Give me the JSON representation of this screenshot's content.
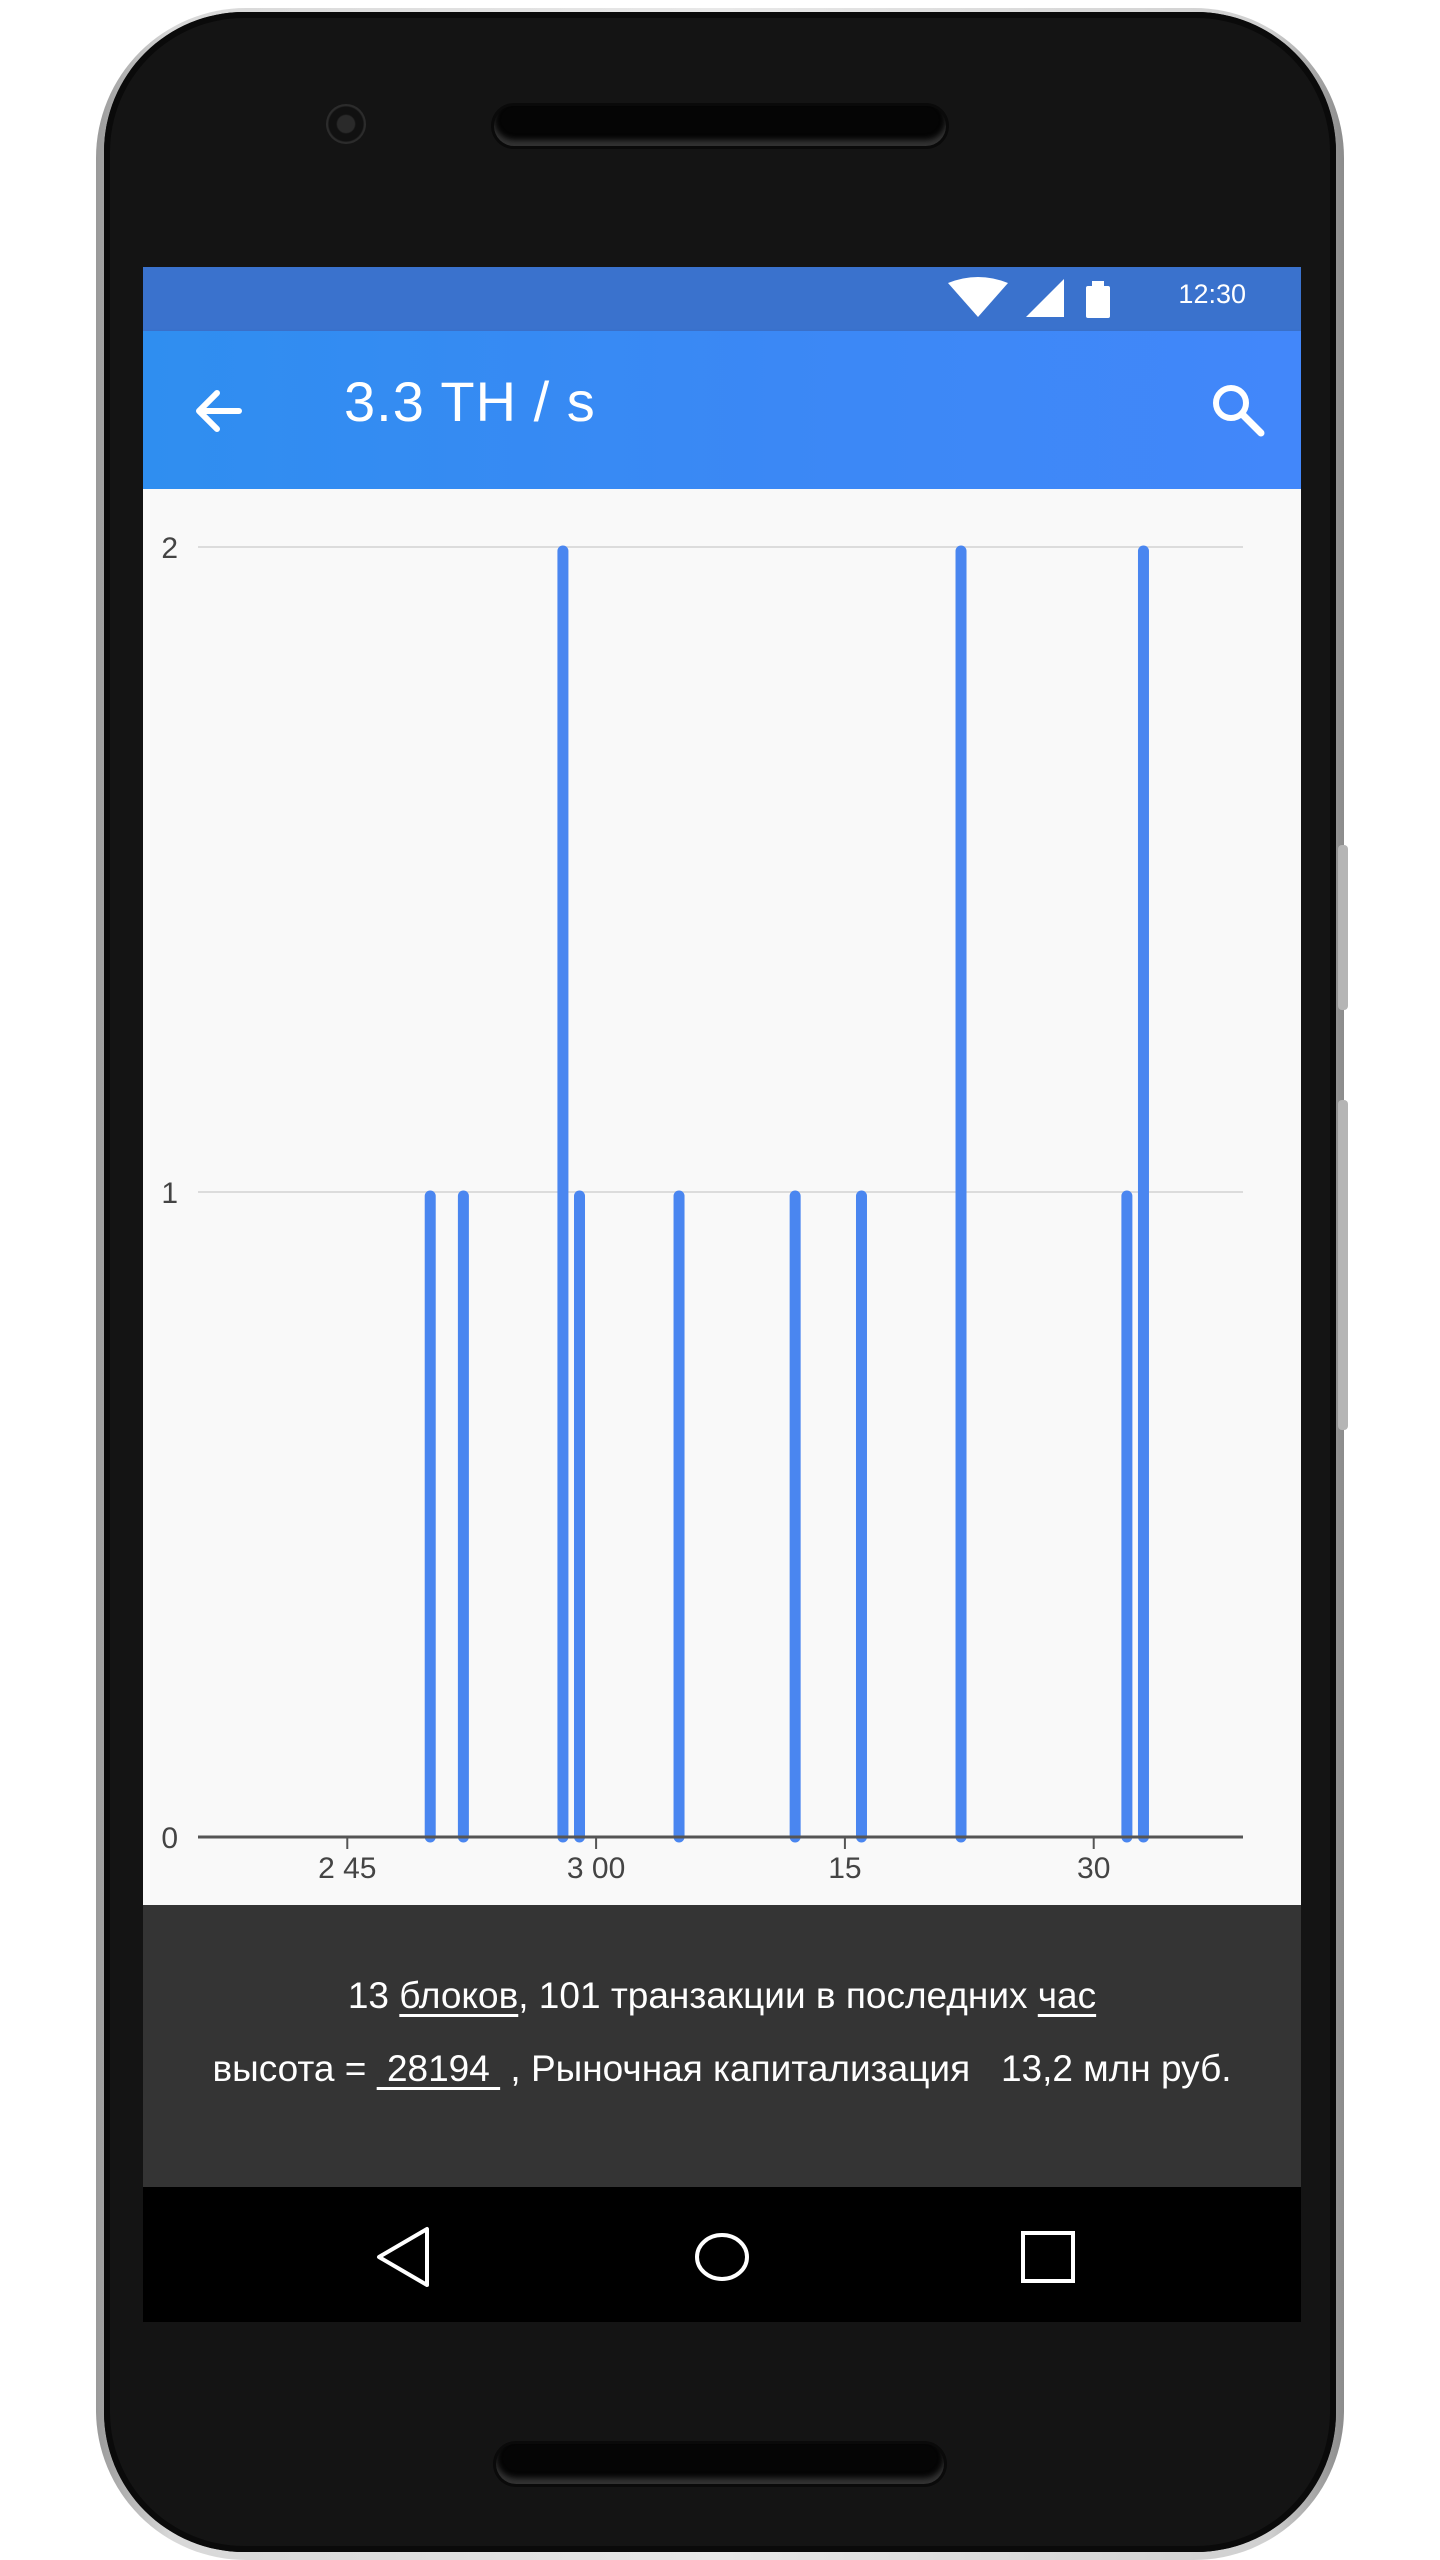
{
  "status_bar": {
    "time": "12:30"
  },
  "app_bar": {
    "title": "3.3 TH / s",
    "back_icon": "arrow-back-icon",
    "search_icon": "search-icon"
  },
  "chart_data": {
    "type": "bar",
    "x_ticks": [
      "2 45",
      "3 00",
      "15",
      "30"
    ],
    "y_ticks": [
      "0",
      "1",
      "2"
    ],
    "ylim": [
      0,
      2
    ],
    "xlim": [
      "2:36",
      "3:39"
    ],
    "grid": true,
    "bar_color": "#4a86f0",
    "bars": [
      {
        "x": "2:50",
        "y": 1
      },
      {
        "x": "2:52",
        "y": 1
      },
      {
        "x": "2:58",
        "y": 2
      },
      {
        "x": "2:59",
        "y": 1
      },
      {
        "x": "3:05",
        "y": 1
      },
      {
        "x": "3:12",
        "y": 1
      },
      {
        "x": "3:16",
        "y": 1
      },
      {
        "x": "3:22",
        "y": 2
      },
      {
        "x": "3:32",
        "y": 1
      },
      {
        "x": "3:33",
        "y": 2
      }
    ]
  },
  "info": {
    "line1_prefix": "13 ",
    "line1_link1": "блоков",
    "line1_middle": ", 101 транзакции в последних ",
    "line1_link2": "час",
    "line2_prefix": "высота = ",
    "line2_height": " 28194 ",
    "line2_suffix": " , Рыночная капитализация   13,2 млн руб."
  },
  "nav": {
    "back_icon": "nav-back-icon",
    "home_icon": "nav-home-icon",
    "recents_icon": "nav-recents-icon"
  },
  "colors": {
    "accent": "#3b88f5",
    "status_bar": "#3a72cd",
    "panel": "#343434",
    "bar": "#4a86f0"
  }
}
